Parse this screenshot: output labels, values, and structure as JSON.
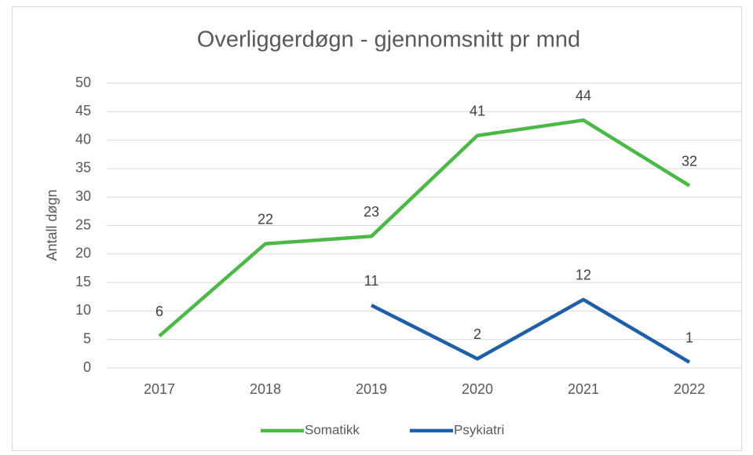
{
  "chart_data": {
    "type": "line",
    "title": "Overliggerdøgn - gjennomsnitt pr mnd",
    "y_label": "Antall døgn",
    "categories": [
      "2017",
      "2018",
      "2019",
      "2020",
      "2021",
      "2022"
    ],
    "series": [
      {
        "name": "Somatikk",
        "color": "#4cb848",
        "values": [
          5.6,
          21.8,
          23.1,
          40.8,
          43.5,
          32.0
        ],
        "value_labels": [
          "6",
          "22",
          "23",
          "41",
          "44",
          "32"
        ]
      },
      {
        "name": "Psykiatri",
        "color": "#1f5fa8",
        "values": [
          null,
          null,
          11.0,
          1.6,
          12.0,
          1.0
        ],
        "value_labels": [
          null,
          null,
          "11",
          "2",
          "12",
          "1"
        ]
      }
    ],
    "ylim": [
      0,
      50
    ],
    "yticks": [
      0,
      5,
      10,
      15,
      20,
      25,
      30,
      35,
      40,
      45,
      50
    ],
    "grid": true,
    "legend": "bottom"
  }
}
